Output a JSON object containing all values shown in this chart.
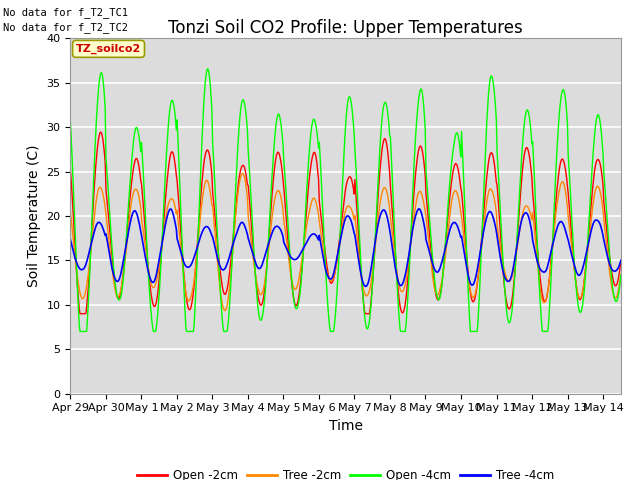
{
  "title": "Tonzi Soil CO2 Profile: Upper Temperatures",
  "xlabel": "Time",
  "ylabel": "Soil Temperature (C)",
  "ylim": [
    0,
    40
  ],
  "xlim_days": 15.5,
  "annotation1": "No data for f_T2_TC1",
  "annotation2": "No data for f_T2_TC2",
  "legend_box_label": "TZ_soilco2",
  "legend_entries": [
    "Open -2cm",
    "Tree -2cm",
    "Open -4cm",
    "Tree -4cm"
  ],
  "line_colors": [
    "#ff0000",
    "#ff8800",
    "#00ff00",
    "#0000ff"
  ],
  "background_color": "#dcdcdc",
  "xtick_labels": [
    "Apr 29",
    "Apr 30",
    "May 1",
    "May 2",
    "May 3",
    "May 4",
    "May 5",
    "May 6",
    "May 7",
    "May 8",
    "May 9",
    "May 10",
    "May 11",
    "May 12",
    "May 13",
    "May 14"
  ],
  "gridcolor": "#ffffff",
  "title_fontsize": 12,
  "label_fontsize": 10,
  "tick_fontsize": 8
}
